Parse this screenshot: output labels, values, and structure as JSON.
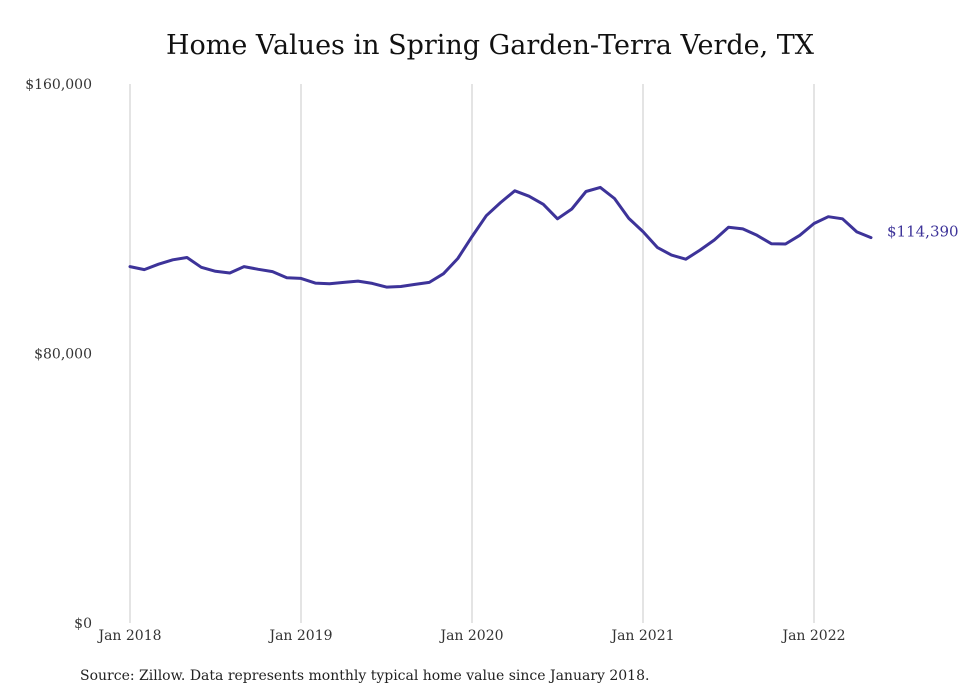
{
  "chart_data": {
    "type": "line",
    "title": "Home Values in Spring Garden-Terra Verde, TX",
    "source": "Source: Zillow. Data represents monthly typical home value since January 2018.",
    "ylim": [
      0,
      160000
    ],
    "y_ticks": [
      {
        "value": 0,
        "label": "$0"
      },
      {
        "value": 80000,
        "label": "$80,000"
      },
      {
        "value": 160000,
        "label": "$160,000"
      }
    ],
    "x_ticks": [
      {
        "x": "2018-01",
        "label": "Jan 2018"
      },
      {
        "x": "2019-01",
        "label": "Jan 2019"
      },
      {
        "x": "2020-01",
        "label": "Jan 2020"
      },
      {
        "x": "2021-01",
        "label": "Jan 2021"
      },
      {
        "x": "2022-01",
        "label": "Jan 2022"
      }
    ],
    "grid": "vertical",
    "line_color": "#3d3399",
    "end_label": "$114,390",
    "series": [
      {
        "x": [
          "2018-01",
          "2018-02",
          "2018-03",
          "2018-04",
          "2018-05",
          "2018-06",
          "2018-07",
          "2018-08",
          "2018-09",
          "2018-10",
          "2018-11",
          "2018-12",
          "2019-01",
          "2019-02",
          "2019-03",
          "2019-04",
          "2019-05",
          "2019-06",
          "2019-07",
          "2019-08",
          "2019-09",
          "2019-10",
          "2019-11",
          "2019-12",
          "2020-01",
          "2020-02",
          "2020-03",
          "2020-04",
          "2020-05",
          "2020-06",
          "2020-07",
          "2020-08",
          "2020-09",
          "2020-10",
          "2020-11",
          "2020-12",
          "2021-01",
          "2021-02",
          "2021-03",
          "2021-04",
          "2021-05",
          "2021-06",
          "2021-07",
          "2021-08",
          "2021-09",
          "2021-10",
          "2021-11",
          "2021-12",
          "2022-01",
          "2022-02",
          "2022-03",
          "2022-04",
          "2022-05"
        ],
        "values": [
          105800,
          104900,
          106500,
          107800,
          108500,
          105600,
          104400,
          103900,
          105800,
          105000,
          104300,
          102500,
          102300,
          100900,
          100700,
          101100,
          101500,
          100800,
          99700,
          99900,
          100500,
          101100,
          103700,
          108200,
          114700,
          120900,
          124800,
          128300,
          126700,
          124300,
          120000,
          122900,
          128100,
          129300,
          126000,
          120100,
          116200,
          111500,
          109200,
          108000,
          110700,
          113700,
          117500,
          117000,
          115100,
          112600,
          112500,
          115100,
          118600,
          120600,
          120000,
          116100,
          114390
        ]
      }
    ]
  }
}
